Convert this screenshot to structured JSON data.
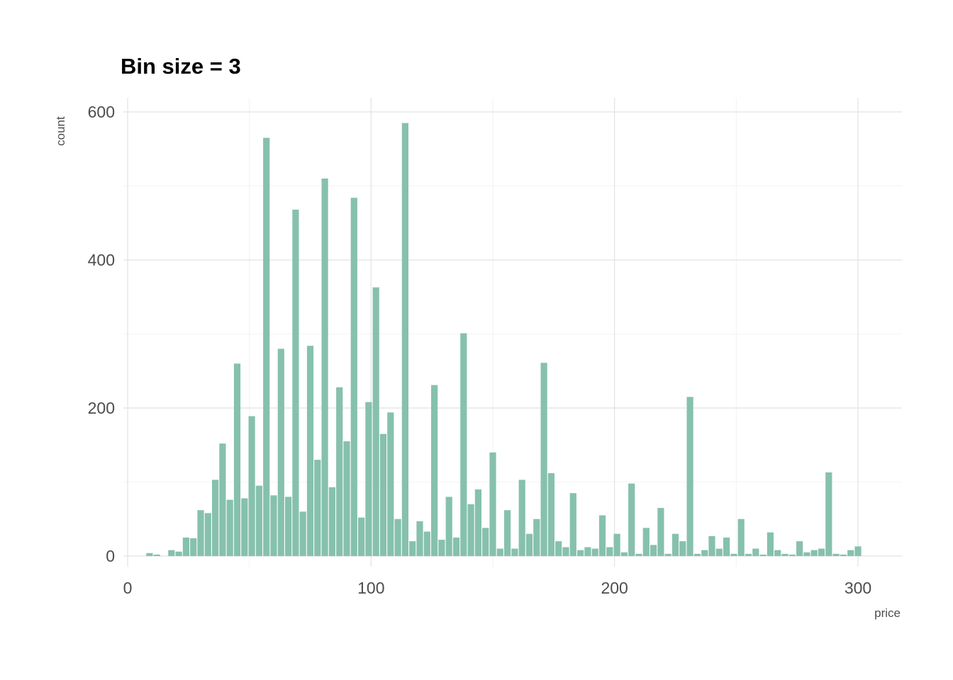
{
  "chart_data": {
    "type": "bar",
    "subtype": "histogram",
    "title": "Bin size = 3",
    "xlabel": "price",
    "ylabel": "count",
    "bin_start": 9,
    "bin_width": 3,
    "x_ticks": [
      0,
      100,
      200,
      300
    ],
    "x_minor_ticks": [
      50,
      150,
      250
    ],
    "y_ticks": [
      0,
      200,
      400,
      600
    ],
    "y_minor_ticks": [
      100,
      300,
      500
    ],
    "xlim": [
      0,
      300
    ],
    "ylim": [
      0,
      600
    ],
    "legend": "none",
    "grid": "on",
    "bar_color": "#86c1ad",
    "major_grid_color": "#e2e2e2",
    "minor_grid_color": "#efefef",
    "tick_label_color": "#4d4d4d",
    "values": [
      4,
      2,
      0,
      8,
      6,
      25,
      24,
      62,
      58,
      103,
      152,
      76,
      260,
      78,
      189,
      95,
      565,
      82,
      280,
      80,
      468,
      60,
      284,
      130,
      510,
      93,
      228,
      155,
      484,
      52,
      208,
      363,
      165,
      194,
      50,
      585,
      20,
      47,
      33,
      231,
      22,
      80,
      25,
      301,
      70,
      90,
      38,
      140,
      10,
      62,
      10,
      103,
      30,
      50,
      261,
      112,
      20,
      12,
      85,
      8,
      12,
      10,
      55,
      12,
      30,
      5,
      98,
      3,
      38,
      15,
      65,
      3,
      30,
      20,
      215,
      3,
      8,
      27,
      10,
      25,
      3,
      50,
      3,
      10,
      2,
      32,
      8,
      3,
      2,
      20,
      5,
      8,
      10,
      113,
      3,
      2,
      8,
      13
    ]
  }
}
